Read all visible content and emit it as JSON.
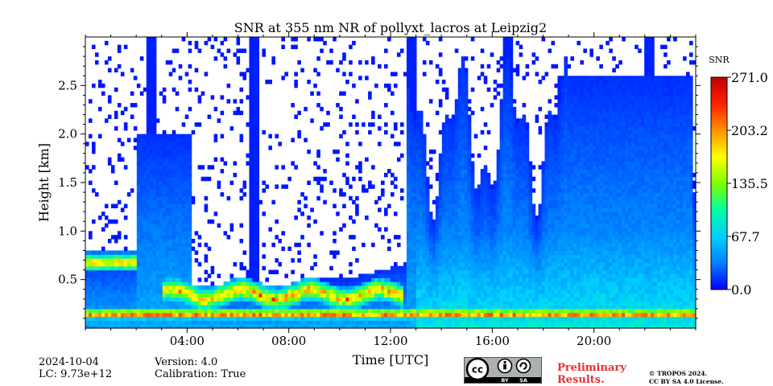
{
  "chart_data": {
    "type": "heatmap",
    "title": "SNR at 355 nm NR of pollyxt_lacros at Leipzig2",
    "xlabel": "Time [UTC]",
    "ylabel": "Height [km]",
    "xlim": [
      0,
      24
    ],
    "ylim": [
      0,
      3.0
    ],
    "x_ticks": [
      4,
      8,
      12,
      16,
      20
    ],
    "x_tick_labels": [
      "04:00",
      "08:00",
      "12:00",
      "16:00",
      "20:00"
    ],
    "y_ticks": [
      0.5,
      1.0,
      1.5,
      2.0,
      2.5
    ],
    "y_tick_labels": [
      "0.5",
      "1.0",
      "1.5",
      "2.0",
      "2.5"
    ],
    "colorbar": {
      "label": "SNR",
      "range": [
        0.0,
        271.0
      ],
      "tick_labels": [
        "0.0",
        "67.7",
        "135.5",
        "203.2",
        "271.0"
      ],
      "colormap": [
        "#0000ff",
        "#0080ff",
        "#00d0ff",
        "#00ffa0",
        "#80ff00",
        "#ffff00",
        "#ff9000",
        "#ff2000",
        "#c00000"
      ]
    },
    "features": {
      "near_surface_layer": {
        "height_km": 0.15,
        "snr": 230
      },
      "boundary_layer_top_km": [
        [
          0,
          0.75
        ],
        [
          1,
          0.72
        ],
        [
          2,
          0.78
        ],
        [
          3,
          0.3
        ],
        [
          4,
          0.32
        ],
        [
          5,
          0.42
        ],
        [
          6,
          0.45
        ],
        [
          7,
          0.45
        ],
        [
          8,
          0.45
        ],
        [
          9,
          0.5
        ],
        [
          10,
          0.5
        ],
        [
          11,
          0.55
        ],
        [
          12,
          0.62
        ],
        [
          13,
          0.7
        ],
        [
          14,
          0.8
        ],
        [
          15,
          0.9
        ],
        [
          16,
          1.0
        ],
        [
          17,
          1.0
        ],
        [
          18,
          0.9
        ],
        [
          19,
          0.7
        ],
        [
          20,
          0.8
        ],
        [
          21,
          0.9
        ],
        [
          22,
          1.1
        ],
        [
          23,
          1.3
        ],
        [
          24,
          1.4
        ]
      ],
      "elevated_aerosol_layer": {
        "x_range": [
          2.0,
          4.2
        ],
        "height_km": [
          0.9,
          2.0
        ]
      },
      "vertical_profiles": [
        {
          "x": 2.6,
          "height_km": 3.0
        },
        {
          "x": 6.6,
          "height_km": 3.0
        },
        {
          "x": 12.8,
          "height_km": 3.0
        },
        {
          "x": 14.5,
          "height_km": 2.0
        },
        {
          "x": 15.0,
          "height_km": 2.2
        },
        {
          "x": 16.6,
          "height_km": 3.0
        },
        {
          "x": 17.3,
          "height_km": 2.1
        },
        {
          "x": 18.8,
          "height_km": 2.6
        },
        {
          "x": 22.2,
          "height_km": 3.0
        }
      ],
      "high_snr_layer": {
        "x_range": [
          3.0,
          12.5
        ],
        "height_km": [
          0.25,
          0.45
        ],
        "snr": 215
      }
    }
  },
  "footer": {
    "date": "2024-10-04",
    "lc": "LC: 9.73e+12",
    "version": "Version: 4.0",
    "calibration": "Calibration: True",
    "preliminary_line1": "Preliminary",
    "preliminary_line2": "Results.",
    "copyright_line1": "© TROPOS 2024.",
    "copyright_line2": "CC BY SA 4.0 License.",
    "license_badge": {
      "cc": "cc",
      "by": "BY",
      "sa": "SA"
    }
  }
}
